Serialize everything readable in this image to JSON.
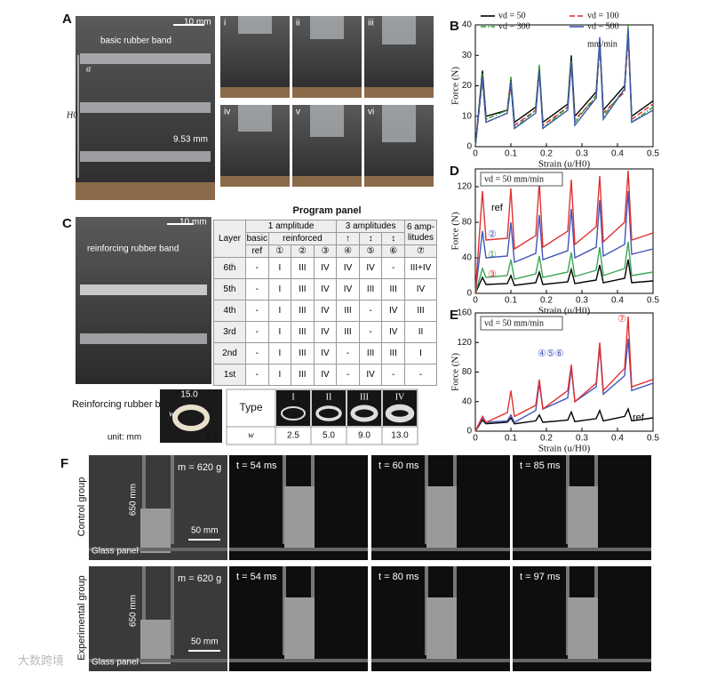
{
  "figure": {
    "panel_labels": [
      "A",
      "B",
      "C",
      "D",
      "E",
      "F"
    ],
    "panel_a": {
      "scale_bar": "10 mm",
      "band_label": "basic rubber band",
      "angle_label": "α",
      "height_label": "H0",
      "width_label": "9.53 mm",
      "subpanels": [
        "i",
        "ii",
        "iii",
        "iv",
        "v",
        "vi"
      ]
    },
    "panel_c": {
      "scale_bar": "10 mm",
      "band_label": "reinforcing rubber band"
    },
    "program_panel": {
      "title": "Program panel",
      "header_top": [
        "Layer",
        "1 amplitude",
        "3 amplitudes",
        "6 amp-litudes"
      ],
      "header_mid": [
        "basic",
        "reinforced",
        "↑",
        "↕",
        "↕"
      ],
      "header_programs": [
        "ref",
        "①",
        "②",
        "③",
        "④",
        "⑤",
        "⑥",
        "⑦"
      ],
      "rows": [
        [
          "6th",
          "-",
          "I",
          "III",
          "IV",
          "IV",
          "IV",
          "-",
          "III+IV"
        ],
        [
          "5th",
          "-",
          "I",
          "III",
          "IV",
          "IV",
          "III",
          "III",
          "IV"
        ],
        [
          "4th",
          "-",
          "I",
          "III",
          "IV",
          "III",
          "-",
          "IV",
          "III"
        ],
        [
          "3rd",
          "-",
          "I",
          "III",
          "IV",
          "III",
          "-",
          "IV",
          "II"
        ],
        [
          "2nd",
          "-",
          "I",
          "III",
          "IV",
          "-",
          "III",
          "III",
          "I"
        ],
        [
          "1st",
          "-",
          "I",
          "III",
          "IV",
          "-",
          "IV",
          "-",
          "-"
        ]
      ]
    },
    "band_table": {
      "title": "Reinforcing rubber band",
      "unit": "unit: mm",
      "dims": [
        "15.0",
        "w",
        "1.2"
      ],
      "type_label": "Type",
      "types": [
        "I",
        "II",
        "III",
        "IV"
      ],
      "w_label": "w",
      "w_values": [
        "2.5",
        "5.0",
        "9.0",
        "13.0"
      ]
    },
    "panel_f": {
      "groups": [
        "Control group",
        "Experimental group"
      ],
      "mass": "m = 620 g",
      "height": "650 mm",
      "scale_bar": "50 mm",
      "glass": "Glass panel",
      "times": [
        [
          "t = 54 ms",
          "t = 60 ms",
          "t = 85 ms"
        ],
        [
          "t = 54 ms",
          "t = 80 ms",
          "t = 97 ms"
        ]
      ]
    },
    "watermark": "大数跨境"
  },
  "chart_data": [
    {
      "type": "line",
      "xlabel": "Strain (u/H0)",
      "ylabel": "Force (N)",
      "legend": "top-left",
      "legend_note": "mm/min",
      "x": [
        0,
        0.02,
        0.03,
        0.09,
        0.1,
        0.11,
        0.17,
        0.18,
        0.19,
        0.26,
        0.27,
        0.28,
        0.34,
        0.35,
        0.36,
        0.42,
        0.43,
        0.44,
        0.5
      ],
      "xlim": [
        0,
        0.5
      ],
      "xticks": [
        0,
        0.1,
        0.2,
        0.3,
        0.4,
        0.5
      ],
      "ylim": [
        0,
        40
      ],
      "yticks": [
        0,
        10,
        20,
        30,
        40
      ],
      "series": [
        {
          "name": "vd = 50",
          "color": "#000000",
          "dash": "solid",
          "values": [
            0,
            25,
            10,
            12,
            22,
            8,
            13,
            26,
            8,
            14,
            30,
            10,
            18,
            35,
            12,
            20,
            38,
            10,
            15
          ]
        },
        {
          "name": "vd = 100",
          "color": "#d62728",
          "dash": "dashed",
          "values": [
            0,
            22,
            8,
            11,
            20,
            7,
            12,
            24,
            7,
            13,
            27,
            9,
            16,
            33,
            11,
            18,
            36,
            9,
            14
          ]
        },
        {
          "name": "vd = 300",
          "color": "#2ca02c",
          "dash": "dashdot",
          "values": [
            0,
            24,
            9,
            12,
            23,
            6,
            12,
            27,
            6,
            13,
            29,
            8,
            17,
            34,
            10,
            19,
            40,
            8,
            13
          ]
        },
        {
          "name": "vd = 500",
          "color": "#3b5bab",
          "dash": "solid",
          "values": [
            0,
            23,
            8,
            11,
            21,
            6,
            11,
            25,
            6,
            12,
            28,
            7,
            16,
            36,
            9,
            19,
            39,
            8,
            12
          ]
        }
      ]
    },
    {
      "type": "line",
      "xlabel": "Strain (u/H0)",
      "ylabel": "Force (N)",
      "legend": "direct",
      "annotation": "vd = 50 mm/min",
      "x": [
        0,
        0.02,
        0.03,
        0.09,
        0.1,
        0.11,
        0.17,
        0.18,
        0.19,
        0.26,
        0.27,
        0.28,
        0.34,
        0.35,
        0.36,
        0.42,
        0.43,
        0.44,
        0.5
      ],
      "xlim": [
        0,
        0.5
      ],
      "xticks": [
        0,
        0.1,
        0.2,
        0.3,
        0.4,
        0.5
      ],
      "ylim": [
        0,
        140
      ],
      "yticks": [
        0,
        40,
        80,
        120
      ],
      "series": [
        {
          "name": "ref",
          "color": "#000000",
          "dash": "solid",
          "values": [
            0,
            18,
            10,
            11,
            20,
            9,
            12,
            24,
            10,
            13,
            27,
            11,
            15,
            32,
            12,
            17,
            38,
            12,
            14
          ]
        },
        {
          "name": "①",
          "color": "#3aa655",
          "dash": "solid",
          "values": [
            0,
            28,
            18,
            20,
            38,
            16,
            22,
            42,
            18,
            24,
            46,
            19,
            26,
            52,
            20,
            28,
            58,
            20,
            24
          ]
        },
        {
          "name": "②",
          "color": "#4355b8",
          "dash": "solid",
          "values": [
            0,
            70,
            40,
            42,
            80,
            35,
            45,
            88,
            38,
            48,
            95,
            40,
            52,
            105,
            42,
            55,
            115,
            44,
            50
          ]
        },
        {
          "name": "③",
          "color": "#e03030",
          "dash": "solid",
          "values": [
            0,
            115,
            60,
            62,
            118,
            50,
            65,
            125,
            52,
            70,
            128,
            55,
            75,
            132,
            58,
            80,
            138,
            60,
            68
          ]
        }
      ]
    },
    {
      "type": "line",
      "xlabel": "Strain (u/H0)",
      "ylabel": "Force (N)",
      "legend": "direct",
      "annotation": "vd = 50 mm/min",
      "x": [
        0,
        0.02,
        0.03,
        0.09,
        0.1,
        0.11,
        0.17,
        0.18,
        0.19,
        0.26,
        0.27,
        0.28,
        0.34,
        0.35,
        0.36,
        0.42,
        0.43,
        0.44,
        0.5
      ],
      "xlim": [
        0,
        0.5
      ],
      "xticks": [
        0,
        0.1,
        0.2,
        0.3,
        0.4,
        0.5
      ],
      "ylim": [
        0,
        160
      ],
      "yticks": [
        0,
        40,
        80,
        120,
        160
      ],
      "series": [
        {
          "name": "ref",
          "color": "#000000",
          "dash": "solid",
          "values": [
            0,
            15,
            10,
            12,
            18,
            10,
            14,
            22,
            12,
            15,
            26,
            13,
            17,
            28,
            14,
            20,
            30,
            14,
            18
          ]
        },
        {
          "name": "④⑤⑥",
          "color": "#4355b8",
          "dash": "solid",
          "values": [
            0,
            18,
            12,
            14,
            22,
            12,
            28,
            65,
            30,
            45,
            85,
            40,
            60,
            115,
            50,
            75,
            125,
            55,
            65
          ]
        },
        {
          "name": "⑦",
          "color": "#e03030",
          "dash": "solid",
          "values": [
            0,
            20,
            12,
            25,
            55,
            20,
            35,
            70,
            30,
            55,
            90,
            40,
            65,
            120,
            55,
            85,
            155,
            60,
            70
          ]
        }
      ]
    }
  ]
}
